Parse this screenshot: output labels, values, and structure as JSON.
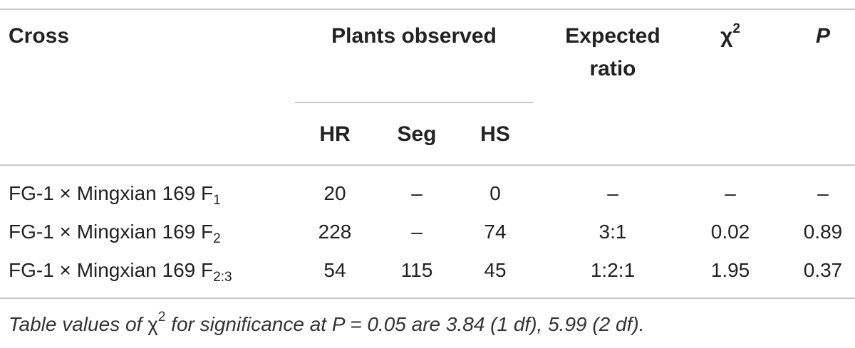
{
  "table": {
    "headers": {
      "cross": "Cross",
      "plants_observed": "Plants observed",
      "expected_ratio_line1": "Expected",
      "expected_ratio_line2": "ratio",
      "chi_symbol": "χ",
      "chi_power": "2",
      "p": "P",
      "hr": "HR",
      "seg": "Seg",
      "hs": "HS"
    },
    "rows": [
      {
        "cross": "FG-1 × Mingxian 169 F",
        "sub": "1",
        "hr": "20",
        "seg": "–",
        "hs": "0",
        "ratio": "–",
        "chi2": "–",
        "p": "–"
      },
      {
        "cross": "FG-1 × Mingxian 169 F",
        "sub": "2",
        "hr": "228",
        "seg": "–",
        "hs": "74",
        "ratio": "3:1",
        "chi2": "0.02",
        "p": "0.89"
      },
      {
        "cross": "FG-1 × Mingxian 169 F",
        "sub": "2:3",
        "hr": "54",
        "seg": "115",
        "hs": "45",
        "ratio": "1:2:1",
        "chi2": "1.95",
        "p": "0.37"
      }
    ],
    "footnote": {
      "before_chi": "Table values of ",
      "chi_symbol": "χ",
      "chi_power": "2",
      "after_chi": " for significance at P = 0.05 are 3.84 (1 df), 5.99 (2 df)."
    }
  }
}
